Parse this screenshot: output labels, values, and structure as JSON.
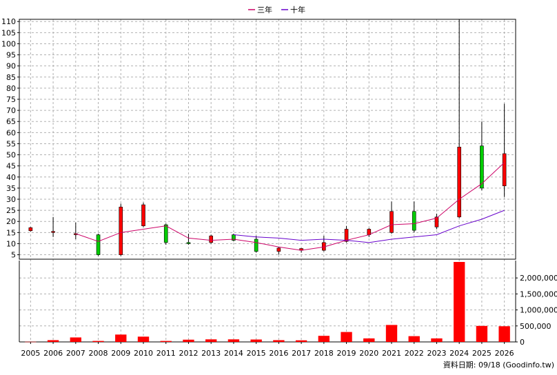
{
  "chart_data": {
    "type": "candlestick",
    "legend": [
      "三年",
      "十年"
    ],
    "legend_position": "top-center",
    "grid": true,
    "categories": [
      "2005",
      "2006",
      "2007",
      "2008",
      "2009",
      "2010",
      "2011",
      "2012",
      "2013",
      "2014",
      "2015",
      "2016",
      "2017",
      "2018",
      "2019",
      "2020",
      "2021",
      "2022",
      "2023",
      "2024",
      "2025",
      "2026"
    ],
    "price_axis": {
      "ylim": [
        3,
        111
      ],
      "ticks": [
        "5",
        "10",
        "15",
        "20",
        "25",
        "30",
        "35",
        "40",
        "45",
        "50",
        "55",
        "60",
        "65",
        "70",
        "75",
        "80",
        "85",
        "90",
        "95",
        "100",
        "105",
        "110"
      ],
      "tick_values": [
        5,
        10,
        15,
        20,
        25,
        30,
        35,
        40,
        45,
        50,
        55,
        60,
        65,
        70,
        75,
        80,
        85,
        90,
        95,
        100,
        105,
        110
      ]
    },
    "candles": [
      {
        "year": "2005",
        "open": 15.8,
        "close": 17.2,
        "high": 17.5,
        "low": 15.5
      },
      {
        "year": "2006",
        "open": 15.5,
        "close": 15.5,
        "high": 22,
        "low": 13
      },
      {
        "year": "2007",
        "open": 14.5,
        "close": 14.5,
        "high": 19.5,
        "low": 12
      },
      {
        "year": "2008",
        "open": 14,
        "close": 5,
        "high": 14.5,
        "low": 4.5
      },
      {
        "year": "2009",
        "open": 5,
        "close": 26.5,
        "high": 28,
        "low": 4.5
      },
      {
        "year": "2010",
        "open": 18,
        "close": 27.5,
        "high": 28.5,
        "low": 17.5
      },
      {
        "year": "2011",
        "open": 18.5,
        "close": 10.5,
        "high": 19,
        "low": 9.5
      },
      {
        "year": "2012",
        "open": 10.5,
        "close": 10,
        "high": 14.5,
        "low": 9.5
      },
      {
        "year": "2013",
        "open": 10.5,
        "close": 13.5,
        "high": 14,
        "low": 10
      },
      {
        "year": "2014",
        "open": 14,
        "close": 11.5,
        "high": 14.5,
        "low": 11
      },
      {
        "year": "2015",
        "open": 12,
        "close": 6.5,
        "high": 13.5,
        "low": 6
      },
      {
        "year": "2016",
        "open": 6.5,
        "close": 8,
        "high": 8.5,
        "low": 5
      },
      {
        "year": "2017",
        "open": 7,
        "close": 7.8,
        "high": 8,
        "low": 6
      },
      {
        "year": "2018",
        "open": 7,
        "close": 10.5,
        "high": 13.5,
        "low": 6.5
      },
      {
        "year": "2019",
        "open": 11,
        "close": 16.5,
        "high": 18,
        "low": 10.5
      },
      {
        "year": "2020",
        "open": 14,
        "close": 16.5,
        "high": 17,
        "low": 13
      },
      {
        "year": "2021",
        "open": 15,
        "close": 24.5,
        "high": 29,
        "low": 14.5
      },
      {
        "year": "2022",
        "open": 24.5,
        "close": 16,
        "high": 29,
        "low": 15
      },
      {
        "year": "2023",
        "open": 17.5,
        "close": 22,
        "high": 23.5,
        "low": 16.5
      },
      {
        "year": "2024",
        "open": 22,
        "close": 53.5,
        "high": 111,
        "low": 21.5
      },
      {
        "year": "2025",
        "open": 54,
        "close": 35,
        "high": 65,
        "low": 34
      },
      {
        "year": "2026",
        "open": 36,
        "close": 50.5,
        "high": 73,
        "low": 31
      }
    ],
    "series": [
      {
        "name": "三年",
        "color": "#cc0066",
        "values": [
          null,
          null,
          14.5,
          11,
          15,
          16.5,
          18,
          12.5,
          11.5,
          12,
          10.5,
          8.5,
          7,
          8.5,
          11.5,
          14,
          18.5,
          19,
          21.5,
          30,
          37,
          46.5
        ]
      },
      {
        "name": "十年",
        "color": "#6600cc",
        "values": [
          null,
          null,
          null,
          null,
          null,
          null,
          null,
          null,
          null,
          14,
          13,
          12.5,
          11.5,
          12,
          11.5,
          10.5,
          12,
          13,
          14,
          18,
          21,
          25
        ]
      }
    ],
    "volume_axis": {
      "ylim": [
        0,
        2500000
      ],
      "ticks": [
        "0",
        "500,000",
        "1,000,000",
        "1,500,000",
        "2,000,000"
      ],
      "tick_values": [
        0,
        500000,
        1000000,
        1500000,
        2000000
      ]
    },
    "volumes": [
      5000,
      55000,
      140000,
      30000,
      230000,
      165000,
      30000,
      70000,
      80000,
      80000,
      75000,
      55000,
      50000,
      190000,
      310000,
      110000,
      530000,
      180000,
      110000,
      2500000,
      500000,
      490000
    ],
    "source": "資料日期: 09/18  (Goodinfo.tw)"
  },
  "colors": {
    "up": "#ff0000",
    "down": "#00cc00",
    "volume": "#ff0000",
    "grid": "#b0b0b0",
    "axis": "#000000"
  }
}
